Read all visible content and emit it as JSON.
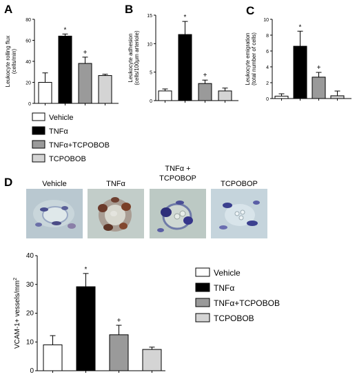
{
  "panels": {
    "A": {
      "letter": "A"
    },
    "B": {
      "letter": "B"
    },
    "C": {
      "letter": "C"
    },
    "D": {
      "letter": "D"
    }
  },
  "legend_top": {
    "items": [
      {
        "label": "Vehicle",
        "color": "#ffffff"
      },
      {
        "label": "TNFα",
        "color": "#000000"
      },
      {
        "label": "TNFα+TCPOBOB",
        "color": "#9a9a9a"
      },
      {
        "label": "TCPOBOB",
        "color": "#d4d4d4"
      }
    ]
  },
  "legend_bottom": {
    "items": [
      {
        "label": "Vehicle",
        "color": "#ffffff"
      },
      {
        "label": "TNFα",
        "color": "#000000"
      },
      {
        "label": "TNFα+TCPOBOB",
        "color": "#9a9a9a"
      },
      {
        "label": "TCPOBOB",
        "color": "#d4d4d4"
      }
    ]
  },
  "micrographs": {
    "labels": [
      "Vehicle",
      "TNFα",
      "TNFα +\nTCPOBOP",
      "TCPOBOP"
    ],
    "label_lines": [
      [
        "Vehicle"
      ],
      [
        "TNFα"
      ],
      [
        "TNFα +",
        "TCPOBOP"
      ],
      [
        "TCPOBOP"
      ]
    ]
  },
  "chart_data": [
    {
      "id": "A",
      "type": "bar",
      "title": "",
      "xlabel": "",
      "ylabel_lines": [
        "Leukocyte rolling flux",
        "(cells/min)"
      ],
      "ylim": [
        0,
        80
      ],
      "yticks": [
        0,
        20,
        40,
        60,
        80
      ],
      "categories": [
        "Vehicle",
        "TNFα",
        "TNFα+TCPOBOB",
        "TCPOBOB"
      ],
      "values": [
        20,
        64,
        38,
        26.5
      ],
      "errors": [
        9,
        2,
        6,
        1.2
      ],
      "colors": [
        "#ffffff",
        "#000000",
        "#9a9a9a",
        "#d4d4d4"
      ],
      "annotations": [
        "",
        "*",
        "+",
        ""
      ]
    },
    {
      "id": "B",
      "type": "bar",
      "title": "",
      "xlabel": "",
      "ylabel_lines": [
        "Leukocyte adhesion",
        "(cells/100μm arteriole)"
      ],
      "ylim": [
        0,
        15
      ],
      "yticks": [
        0,
        5,
        10,
        15
      ],
      "categories": [
        "Vehicle",
        "TNFα",
        "TNFα+TCPOBOB",
        "TCPOBOB"
      ],
      "values": [
        1.7,
        11.6,
        3.0,
        1.7
      ],
      "errors": [
        0.35,
        2.3,
        0.6,
        0.5
      ],
      "colors": [
        "#ffffff",
        "#000000",
        "#9a9a9a",
        "#d4d4d4"
      ],
      "annotations": [
        "",
        "*",
        "+",
        ""
      ]
    },
    {
      "id": "C",
      "type": "bar",
      "title": "",
      "xlabel": "",
      "ylabel_lines": [
        "Leukocyte emigration",
        "(total number of cells)"
      ],
      "ylim": [
        0,
        10
      ],
      "yticks": [
        0,
        2,
        4,
        6,
        8,
        10
      ],
      "categories": [
        "Vehicle",
        "TNFα",
        "TNFα+TCPOBOB",
        "TCPOBOB"
      ],
      "values": [
        0.3,
        6.6,
        2.7,
        0.35
      ],
      "errors": [
        0.3,
        1.9,
        0.6,
        0.6
      ],
      "colors": [
        "#ffffff",
        "#000000",
        "#9a9a9a",
        "#d4d4d4"
      ],
      "annotations": [
        "",
        "*",
        "+",
        ""
      ]
    },
    {
      "id": "D",
      "type": "bar",
      "title": "",
      "xlabel": "",
      "ylabel": "VCAM-1+ vessels/mm",
      "ylabel_sup": "2",
      "ylim": [
        0,
        40
      ],
      "yticks": [
        0,
        10,
        20,
        30,
        40
      ],
      "categories": [
        "Vehicle",
        "TNFα",
        "TNFα+TCPOBOB",
        "TCPOBOB"
      ],
      "values": [
        9,
        29.2,
        12.5,
        7.4
      ],
      "errors": [
        3.2,
        4.6,
        3.3,
        0.8
      ],
      "colors": [
        "#ffffff",
        "#000000",
        "#9a9a9a",
        "#d4d4d4"
      ],
      "annotations": [
        "",
        "*",
        "+",
        ""
      ]
    }
  ]
}
